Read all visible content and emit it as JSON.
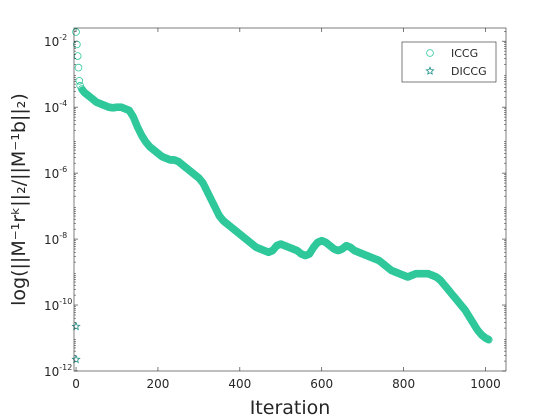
{
  "chart_data": {
    "type": "scatter",
    "xlabel": "Iteration",
    "ylabel": "log(||M⁻¹rᵏ||₂/||M⁻¹b||₂)",
    "xlim": [
      -5,
      1050
    ],
    "ylim": [
      -12,
      -1.6
    ],
    "y_scale": "log10",
    "x_ticks": [
      {
        "value": 0,
        "label": "0"
      },
      {
        "value": 200,
        "label": "200"
      },
      {
        "value": 400,
        "label": "400"
      },
      {
        "value": 600,
        "label": "600"
      },
      {
        "value": 800,
        "label": "800"
      },
      {
        "value": 1000,
        "label": "1000"
      }
    ],
    "y_ticks": [
      {
        "value": -12,
        "base": "10",
        "exp": "-12"
      },
      {
        "value": -10,
        "base": "10",
        "exp": "-10"
      },
      {
        "value": -8,
        "base": "10",
        "exp": "-8"
      },
      {
        "value": -6,
        "base": "10",
        "exp": "-6"
      },
      {
        "value": -4,
        "base": "10",
        "exp": "-4"
      },
      {
        "value": -2,
        "base": "10",
        "exp": "-2"
      }
    ],
    "grid": false,
    "legend_position": "top-right",
    "color": "#2fc89b",
    "series": [
      {
        "name": "ICCG",
        "marker": "circle",
        "points": [
          [
            0,
            -1.72
          ],
          [
            2,
            -2.1
          ],
          [
            4,
            -2.45
          ],
          [
            6,
            -2.8
          ],
          [
            8,
            -3.2
          ],
          [
            10,
            -3.35
          ],
          [
            14,
            -3.45
          ],
          [
            20,
            -3.55
          ],
          [
            30,
            -3.65
          ],
          [
            40,
            -3.75
          ],
          [
            50,
            -3.85
          ],
          [
            60,
            -3.9
          ],
          [
            70,
            -3.95
          ],
          [
            80,
            -4.0
          ],
          [
            90,
            -4.02
          ],
          [
            100,
            -4.0
          ],
          [
            110,
            -4.0
          ],
          [
            120,
            -4.05
          ],
          [
            130,
            -4.1
          ],
          [
            140,
            -4.3
          ],
          [
            150,
            -4.6
          ],
          [
            160,
            -4.85
          ],
          [
            170,
            -5.05
          ],
          [
            180,
            -5.2
          ],
          [
            190,
            -5.3
          ],
          [
            200,
            -5.4
          ],
          [
            210,
            -5.5
          ],
          [
            220,
            -5.55
          ],
          [
            230,
            -5.6
          ],
          [
            240,
            -5.6
          ],
          [
            250,
            -5.65
          ],
          [
            260,
            -5.75
          ],
          [
            270,
            -5.85
          ],
          [
            280,
            -5.95
          ],
          [
            290,
            -6.05
          ],
          [
            300,
            -6.15
          ],
          [
            310,
            -6.3
          ],
          [
            320,
            -6.55
          ],
          [
            330,
            -6.8
          ],
          [
            340,
            -7.05
          ],
          [
            350,
            -7.3
          ],
          [
            360,
            -7.45
          ],
          [
            370,
            -7.55
          ],
          [
            380,
            -7.65
          ],
          [
            390,
            -7.75
          ],
          [
            400,
            -7.85
          ],
          [
            410,
            -7.95
          ],
          [
            420,
            -8.05
          ],
          [
            430,
            -8.15
          ],
          [
            440,
            -8.25
          ],
          [
            450,
            -8.3
          ],
          [
            460,
            -8.35
          ],
          [
            470,
            -8.4
          ],
          [
            480,
            -8.35
          ],
          [
            490,
            -8.2
          ],
          [
            500,
            -8.15
          ],
          [
            510,
            -8.2
          ],
          [
            520,
            -8.25
          ],
          [
            530,
            -8.3
          ],
          [
            540,
            -8.35
          ],
          [
            550,
            -8.45
          ],
          [
            560,
            -8.5
          ],
          [
            570,
            -8.45
          ],
          [
            580,
            -8.25
          ],
          [
            590,
            -8.1
          ],
          [
            600,
            -8.05
          ],
          [
            610,
            -8.1
          ],
          [
            620,
            -8.2
          ],
          [
            630,
            -8.3
          ],
          [
            640,
            -8.35
          ],
          [
            650,
            -8.3
          ],
          [
            660,
            -8.2
          ],
          [
            670,
            -8.25
          ],
          [
            680,
            -8.35
          ],
          [
            690,
            -8.4
          ],
          [
            700,
            -8.45
          ],
          [
            710,
            -8.5
          ],
          [
            720,
            -8.55
          ],
          [
            730,
            -8.6
          ],
          [
            740,
            -8.65
          ],
          [
            750,
            -8.75
          ],
          [
            760,
            -8.85
          ],
          [
            770,
            -8.95
          ],
          [
            780,
            -9.0
          ],
          [
            790,
            -9.05
          ],
          [
            800,
            -9.1
          ],
          [
            810,
            -9.15
          ],
          [
            820,
            -9.1
          ],
          [
            830,
            -9.05
          ],
          [
            840,
            -9.05
          ],
          [
            850,
            -9.05
          ],
          [
            860,
            -9.05
          ],
          [
            870,
            -9.1
          ],
          [
            880,
            -9.15
          ],
          [
            890,
            -9.25
          ],
          [
            900,
            -9.4
          ],
          [
            910,
            -9.55
          ],
          [
            920,
            -9.7
          ],
          [
            930,
            -9.85
          ],
          [
            940,
            -10.0
          ],
          [
            950,
            -10.15
          ],
          [
            960,
            -10.35
          ],
          [
            970,
            -10.55
          ],
          [
            980,
            -10.75
          ],
          [
            990,
            -10.9
          ],
          [
            1000,
            -11.0
          ],
          [
            1008,
            -11.05
          ]
        ]
      },
      {
        "name": "DICCG",
        "marker": "star",
        "points": [
          [
            0,
            -10.65
          ],
          [
            0,
            -11.65
          ]
        ]
      }
    ]
  }
}
